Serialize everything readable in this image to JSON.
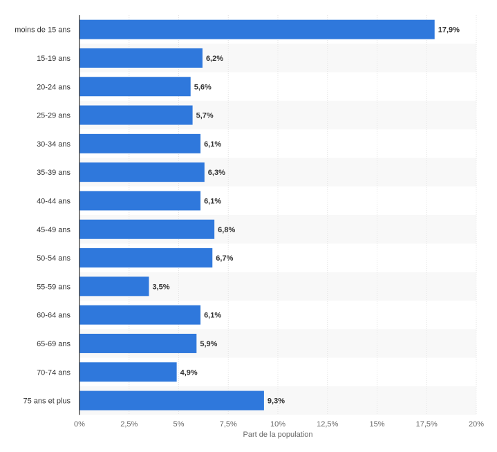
{
  "chart_data": {
    "type": "bar",
    "orientation": "horizontal",
    "categories": [
      "moins de 15 ans",
      "15-19 ans",
      "20-24 ans",
      "25-29 ans",
      "30-34 ans",
      "35-39 ans",
      "40-44 ans",
      "45-49 ans",
      "50-54 ans",
      "55-59 ans",
      "60-64 ans",
      "65-69 ans",
      "70-74 ans",
      "75 ans et plus"
    ],
    "values": [
      17.9,
      6.2,
      5.6,
      5.7,
      6.1,
      6.3,
      6.1,
      6.8,
      6.7,
      3.5,
      6.1,
      5.9,
      4.9,
      9.3
    ],
    "value_labels": [
      "17,9%",
      "6,2%",
      "5,6%",
      "5,7%",
      "6,1%",
      "6,3%",
      "6,1%",
      "6,8%",
      "6,7%",
      "3,5%",
      "6,1%",
      "5,9%",
      "4,9%",
      "9,3%"
    ],
    "xticks": [
      0,
      2.5,
      5,
      7.5,
      10,
      12.5,
      15,
      17.5,
      20
    ],
    "xtick_labels": [
      "0%",
      "2,5%",
      "5%",
      "7,5%",
      "10%",
      "12,5%",
      "15%",
      "17,5%",
      "20%"
    ],
    "xlim": [
      0,
      20
    ],
    "xlabel": "Part de la population",
    "ylabel": "",
    "title": "",
    "grid": true,
    "alternating_row_bands": true,
    "colors": {
      "bar": "#2f78dc",
      "band": "#f8f8f8",
      "grid": "#e4e4e4",
      "axis": "#000000",
      "text": "#333333",
      "tick_text": "#666666"
    }
  }
}
